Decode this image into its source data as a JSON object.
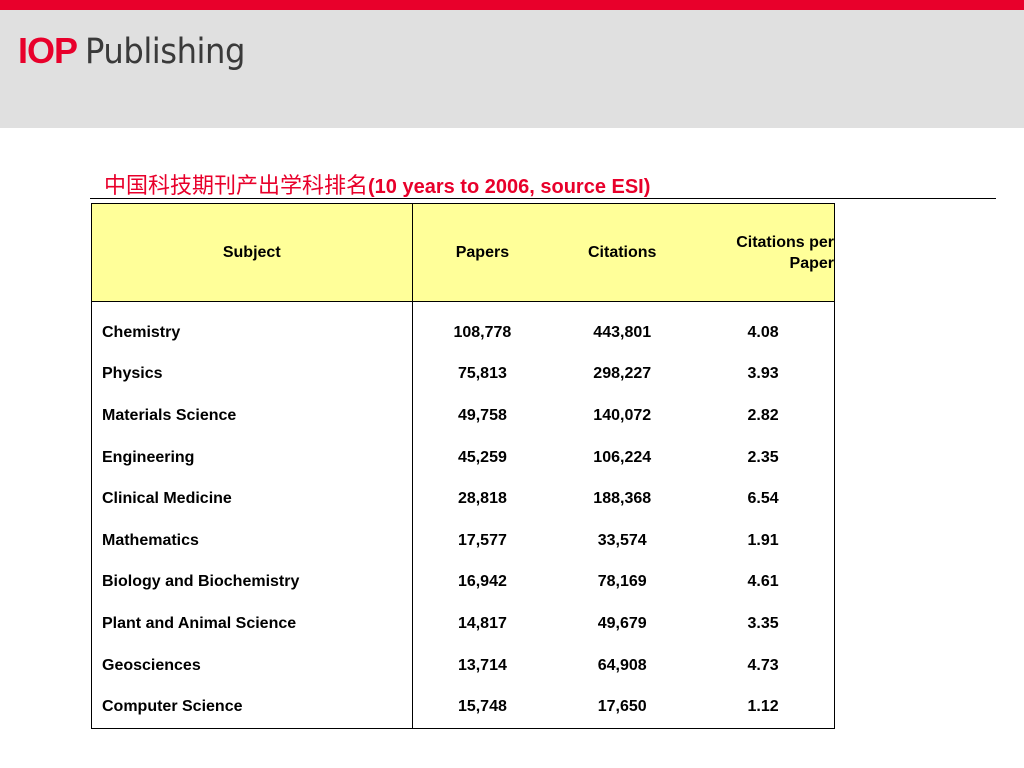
{
  "logo": {
    "brand": "IOP",
    "name": "Publishing"
  },
  "title": {
    "chinese": "中国科技期刊产出学科排名",
    "english": "(10 years to 2006, source ESI)"
  },
  "table": {
    "headers": {
      "subject": "Subject",
      "papers": "Papers",
      "citations": "Citations",
      "citations_per_paper_line1": "Citations per",
      "citations_per_paper_line2": "Paper"
    },
    "rows": [
      {
        "subject": "Chemistry",
        "papers": "108,778",
        "citations": "443,801",
        "cpp": "4.08"
      },
      {
        "subject": "Physics",
        "papers": "75,813",
        "citations": "298,227",
        "cpp": "3.93"
      },
      {
        "subject": "Materials Science",
        "papers": "49,758",
        "citations": "140,072",
        "cpp": "2.82"
      },
      {
        "subject": "Engineering",
        "papers": "45,259",
        "citations": "106,224",
        "cpp": "2.35"
      },
      {
        "subject": "Clinical Medicine",
        "papers": "28,818",
        "citations": "188,368",
        "cpp": "6.54"
      },
      {
        "subject": "Mathematics",
        "papers": "17,577",
        "citations": "33,574",
        "cpp": "1.91"
      },
      {
        "subject": "Biology and Biochemistry",
        "papers": "16,942",
        "citations": "78,169",
        "cpp": "4.61"
      },
      {
        "subject": "Plant and Animal Science",
        "papers": "14,817",
        "citations": "49,679",
        "cpp": "3.35"
      },
      {
        "subject": "Geosciences",
        "papers": "13,714",
        "citations": "64,908",
        "cpp": "4.73"
      },
      {
        "subject": "Computer Science",
        "papers": "15,748",
        "citations": "17,650",
        "cpp": "1.12"
      }
    ]
  },
  "colors": {
    "brand_red": "#e8002b",
    "header_band": "#e0e0e0",
    "table_header_fill": "#ffff99"
  }
}
